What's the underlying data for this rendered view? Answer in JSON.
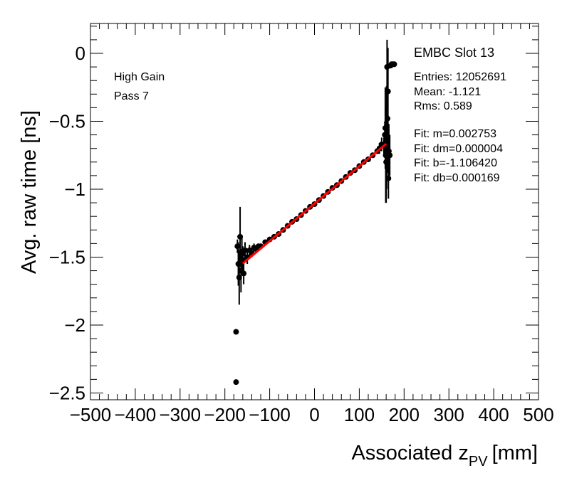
{
  "chart_data": {
    "type": "scatter",
    "title": "EMBC Slot 13",
    "xlabel_main": "Associated z",
    "xlabel_sub": "PV",
    "xlabel_unit": "[mm]",
    "ylabel": "Avg. raw time [ns]",
    "xlim": [
      -500,
      500
    ],
    "ylim": [
      -2.55,
      0.22
    ],
    "x_ticks": [
      -500,
      -400,
      -300,
      -200,
      -100,
      0,
      100,
      200,
      300,
      400,
      500
    ],
    "x_tick_labels": [
      "−500",
      "−400",
      "−300",
      "−200",
      "−100",
      "0",
      "100",
      "200",
      "300",
      "400",
      "500"
    ],
    "y_ticks": [
      0,
      -0.5,
      -1,
      -1.5,
      -2,
      -2.5
    ],
    "y_tick_labels": [
      "0",
      "−0.5",
      "−1",
      "−1.5",
      "−2",
      "−2.5"
    ],
    "annotations": [
      "High Gain",
      "Pass 7"
    ],
    "stats": {
      "title": "EMBC Slot 13",
      "lines": [
        "Entries: 12052691",
        "Mean: -1.121",
        "Rms: 0.589"
      ],
      "fit_lines": [
        "Fit: m=0.002753",
        "Fit: dm=0.000004",
        "Fit: b=-1.106420",
        "Fit: db=0.000169"
      ]
    },
    "fit": {
      "m": 0.002753,
      "b": -1.10642,
      "x_range": [
        -160,
        160
      ],
      "color": "#ff0000"
    },
    "marker_color": "#000000",
    "series": [
      {
        "name": "profile",
        "x": [
          -175,
          -175,
          -172,
          -170,
          -168,
          -166,
          -164,
          -162,
          -160,
          -158,
          -155,
          -150,
          -145,
          -140,
          -135,
          -130,
          -125,
          -120,
          -110,
          -100,
          -90,
          -80,
          -70,
          -60,
          -50,
          -40,
          -30,
          -20,
          -10,
          0,
          10,
          20,
          30,
          40,
          50,
          60,
          70,
          80,
          90,
          100,
          110,
          120,
          130,
          140,
          145,
          150,
          155,
          157,
          158,
          159,
          160,
          161,
          162,
          163,
          164,
          165,
          166,
          168,
          170,
          172,
          175,
          178
        ],
        "y": [
          -2.42,
          -2.05,
          -1.42,
          -1.55,
          -1.65,
          -1.35,
          -1.6,
          -1.48,
          -1.52,
          -1.62,
          -1.45,
          -1.5,
          -1.45,
          -1.47,
          -1.43,
          -1.44,
          -1.42,
          -1.42,
          -1.39,
          -1.37,
          -1.35,
          -1.33,
          -1.3,
          -1.27,
          -1.24,
          -1.22,
          -1.19,
          -1.16,
          -1.13,
          -1.11,
          -1.08,
          -1.05,
          -1.02,
          -0.99,
          -0.97,
          -0.94,
          -0.91,
          -0.88,
          -0.86,
          -0.83,
          -0.8,
          -0.78,
          -0.75,
          -0.72,
          -0.7,
          -0.67,
          -0.68,
          -0.6,
          -0.55,
          -0.75,
          -0.8,
          -0.62,
          -0.1,
          -0.48,
          -0.28,
          -0.92,
          -0.72,
          -0.75,
          -0.09,
          -0.08,
          -0.08,
          -0.08
        ],
        "err": [
          0.0,
          0.0,
          0.05,
          0.16,
          0.2,
          0.22,
          0.16,
          0.12,
          0.1,
          0.08,
          0.06,
          0.05,
          0.04,
          0.03,
          0.03,
          0.02,
          0.02,
          0.02,
          0.01,
          0.01,
          0.01,
          0.01,
          0.01,
          0.01,
          0.01,
          0.01,
          0.01,
          0.01,
          0.01,
          0.01,
          0.01,
          0.01,
          0.01,
          0.01,
          0.01,
          0.01,
          0.01,
          0.01,
          0.01,
          0.01,
          0.01,
          0.02,
          0.02,
          0.02,
          0.04,
          0.05,
          0.06,
          0.1,
          0.3,
          0.35,
          0.3,
          0.38,
          0.2,
          0.4,
          0.32,
          0.15,
          0.2,
          0.15,
          0.02,
          0.02,
          0.02,
          0.02
        ]
      }
    ]
  }
}
